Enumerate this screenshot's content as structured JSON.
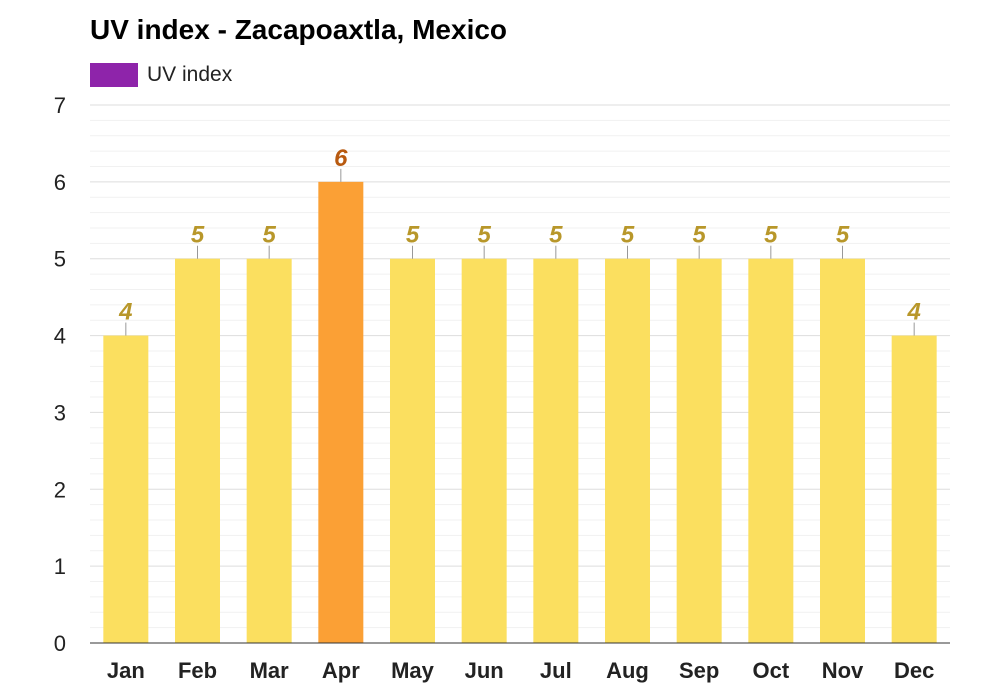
{
  "title": "UV index - Zacapoaxtla, Mexico",
  "legend": {
    "label": "UV index",
    "color": "#8e24aa"
  },
  "colors": {
    "bar_default": "#fbdf5f",
    "bar_highlight": "#fba035",
    "label_default": "#b8972a",
    "label_highlight": "#b85a10",
    "grid_major": "#dddddd",
    "grid_minor": "#f1f1f1",
    "axis": "#333333"
  },
  "chart_data": {
    "type": "bar",
    "title": "UV index - Zacapoaxtla, Mexico",
    "categories": [
      "Jan",
      "Feb",
      "Mar",
      "Apr",
      "May",
      "Jun",
      "Jul",
      "Aug",
      "Sep",
      "Oct",
      "Nov",
      "Dec"
    ],
    "series": [
      {
        "name": "UV index",
        "values": [
          4,
          5,
          5,
          6,
          5,
          5,
          5,
          5,
          5,
          5,
          5,
          4
        ]
      }
    ],
    "highlight_index": 3,
    "ylim": [
      0,
      7
    ],
    "yticks": [
      "0",
      "1",
      "2",
      "3",
      "4",
      "5",
      "6",
      "7"
    ],
    "grid": true,
    "legend_position": "top-left",
    "data_labels": [
      "4",
      "5",
      "5",
      "6",
      "5",
      "5",
      "5",
      "5",
      "5",
      "5",
      "5",
      "4"
    ]
  }
}
